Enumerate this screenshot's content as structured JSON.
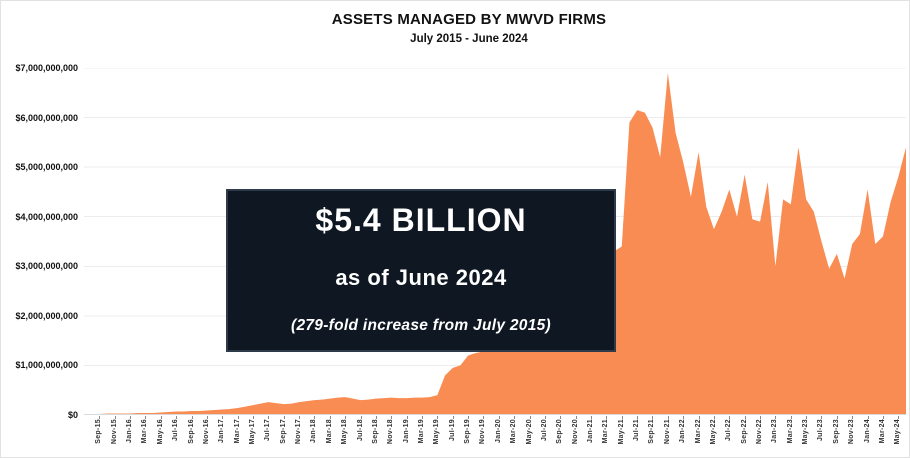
{
  "title": "ASSETS MANAGED BY MWVD FIRMS",
  "subtitle": "July 2015 - June 2024",
  "callout": {
    "headline": "$5.4 BILLION",
    "subline": "as of June 2024",
    "note": "(279-fold increase from July 2015)",
    "bg_color": "#0E1722",
    "border_color": "#2E3B4A",
    "text_color": "#FFFFFF"
  },
  "colors": {
    "area_fill": "#F98C52",
    "gridline": "#ECECEC",
    "axis_line": "#D9D9D9",
    "tick": "#8A8A8A"
  },
  "chart_data": {
    "type": "area",
    "title": "ASSETS MANAGED BY MWVD FIRMS",
    "subtitle": "July 2015 - June 2024",
    "series_name": "Assets managed (USD)",
    "period_start": "Jul-15",
    "period_end": "Jun-24",
    "points_per_year": 12,
    "ylim_billions": [
      0,
      7
    ],
    "grid": true,
    "legend": false,
    "y_axis_labels": [
      "$7,000,000,000",
      "$6,000,000,000",
      "$5,000,000,000",
      "$4,000,000,000",
      "$3,000,000,000",
      "$2,000,000,000",
      "$1,000,000,000",
      "$0"
    ],
    "x_tick_labels": [
      "Sep-15",
      "Nov-15",
      "Jan-16",
      "Mar-16",
      "May-16",
      "Jul-16",
      "Sep-16",
      "Nov-16",
      "Jan-17",
      "Mar-17",
      "May-17",
      "Jul-17",
      "Sep-17",
      "Nov-17",
      "Jan-18",
      "Mar-18",
      "May-18",
      "Jul-18",
      "Sep-18",
      "Nov-18",
      "Jan-19",
      "Mar-19",
      "May-19",
      "Jul-19",
      "Sep-19",
      "Nov-19",
      "Jan-20",
      "Mar-20",
      "May-20",
      "Jul-20",
      "Sep-20",
      "Nov-20",
      "Jan-21",
      "Mar-21",
      "May-21",
      "Jul-21",
      "Sep-21",
      "Nov-21",
      "Jan-22",
      "Mar-22",
      "May-22",
      "Jul-22",
      "Sep-22",
      "Nov-22",
      "Jan-23",
      "Mar-23",
      "May-23",
      "Jul-23",
      "Sep-23",
      "Nov-23",
      "Jan-24",
      "Mar-24",
      "May-24"
    ],
    "x_tick_start_index": 2,
    "x_tick_every": 2,
    "values_billions": [
      0.02,
      0.02,
      0.02,
      0.03,
      0.03,
      0.03,
      0.03,
      0.04,
      0.04,
      0.04,
      0.05,
      0.06,
      0.07,
      0.07,
      0.08,
      0.08,
      0.09,
      0.1,
      0.11,
      0.12,
      0.14,
      0.17,
      0.2,
      0.23,
      0.26,
      0.24,
      0.22,
      0.23,
      0.26,
      0.28,
      0.3,
      0.31,
      0.33,
      0.35,
      0.36,
      0.33,
      0.3,
      0.31,
      0.33,
      0.34,
      0.35,
      0.34,
      0.34,
      0.35,
      0.35,
      0.36,
      0.4,
      0.8,
      0.95,
      1.0,
      1.2,
      1.25,
      1.28,
      1.3,
      1.33,
      1.36,
      1.38,
      1.42,
      1.48,
      1.55,
      1.62,
      1.72,
      1.85,
      2.0,
      2.2,
      2.4,
      2.6,
      2.85,
      3.1,
      3.3,
      3.4,
      5.9,
      6.15,
      6.1,
      5.8,
      5.2,
      6.9,
      5.7,
      5.1,
      4.4,
      5.3,
      4.2,
      3.75,
      4.1,
      4.55,
      4.0,
      4.85,
      3.95,
      3.9,
      4.7,
      3.0,
      4.35,
      4.25,
      5.4,
      4.35,
      4.1,
      3.5,
      2.95,
      3.25,
      2.75,
      3.45,
      3.65,
      4.55,
      3.45,
      3.6,
      4.3,
      4.8,
      5.4
    ]
  }
}
